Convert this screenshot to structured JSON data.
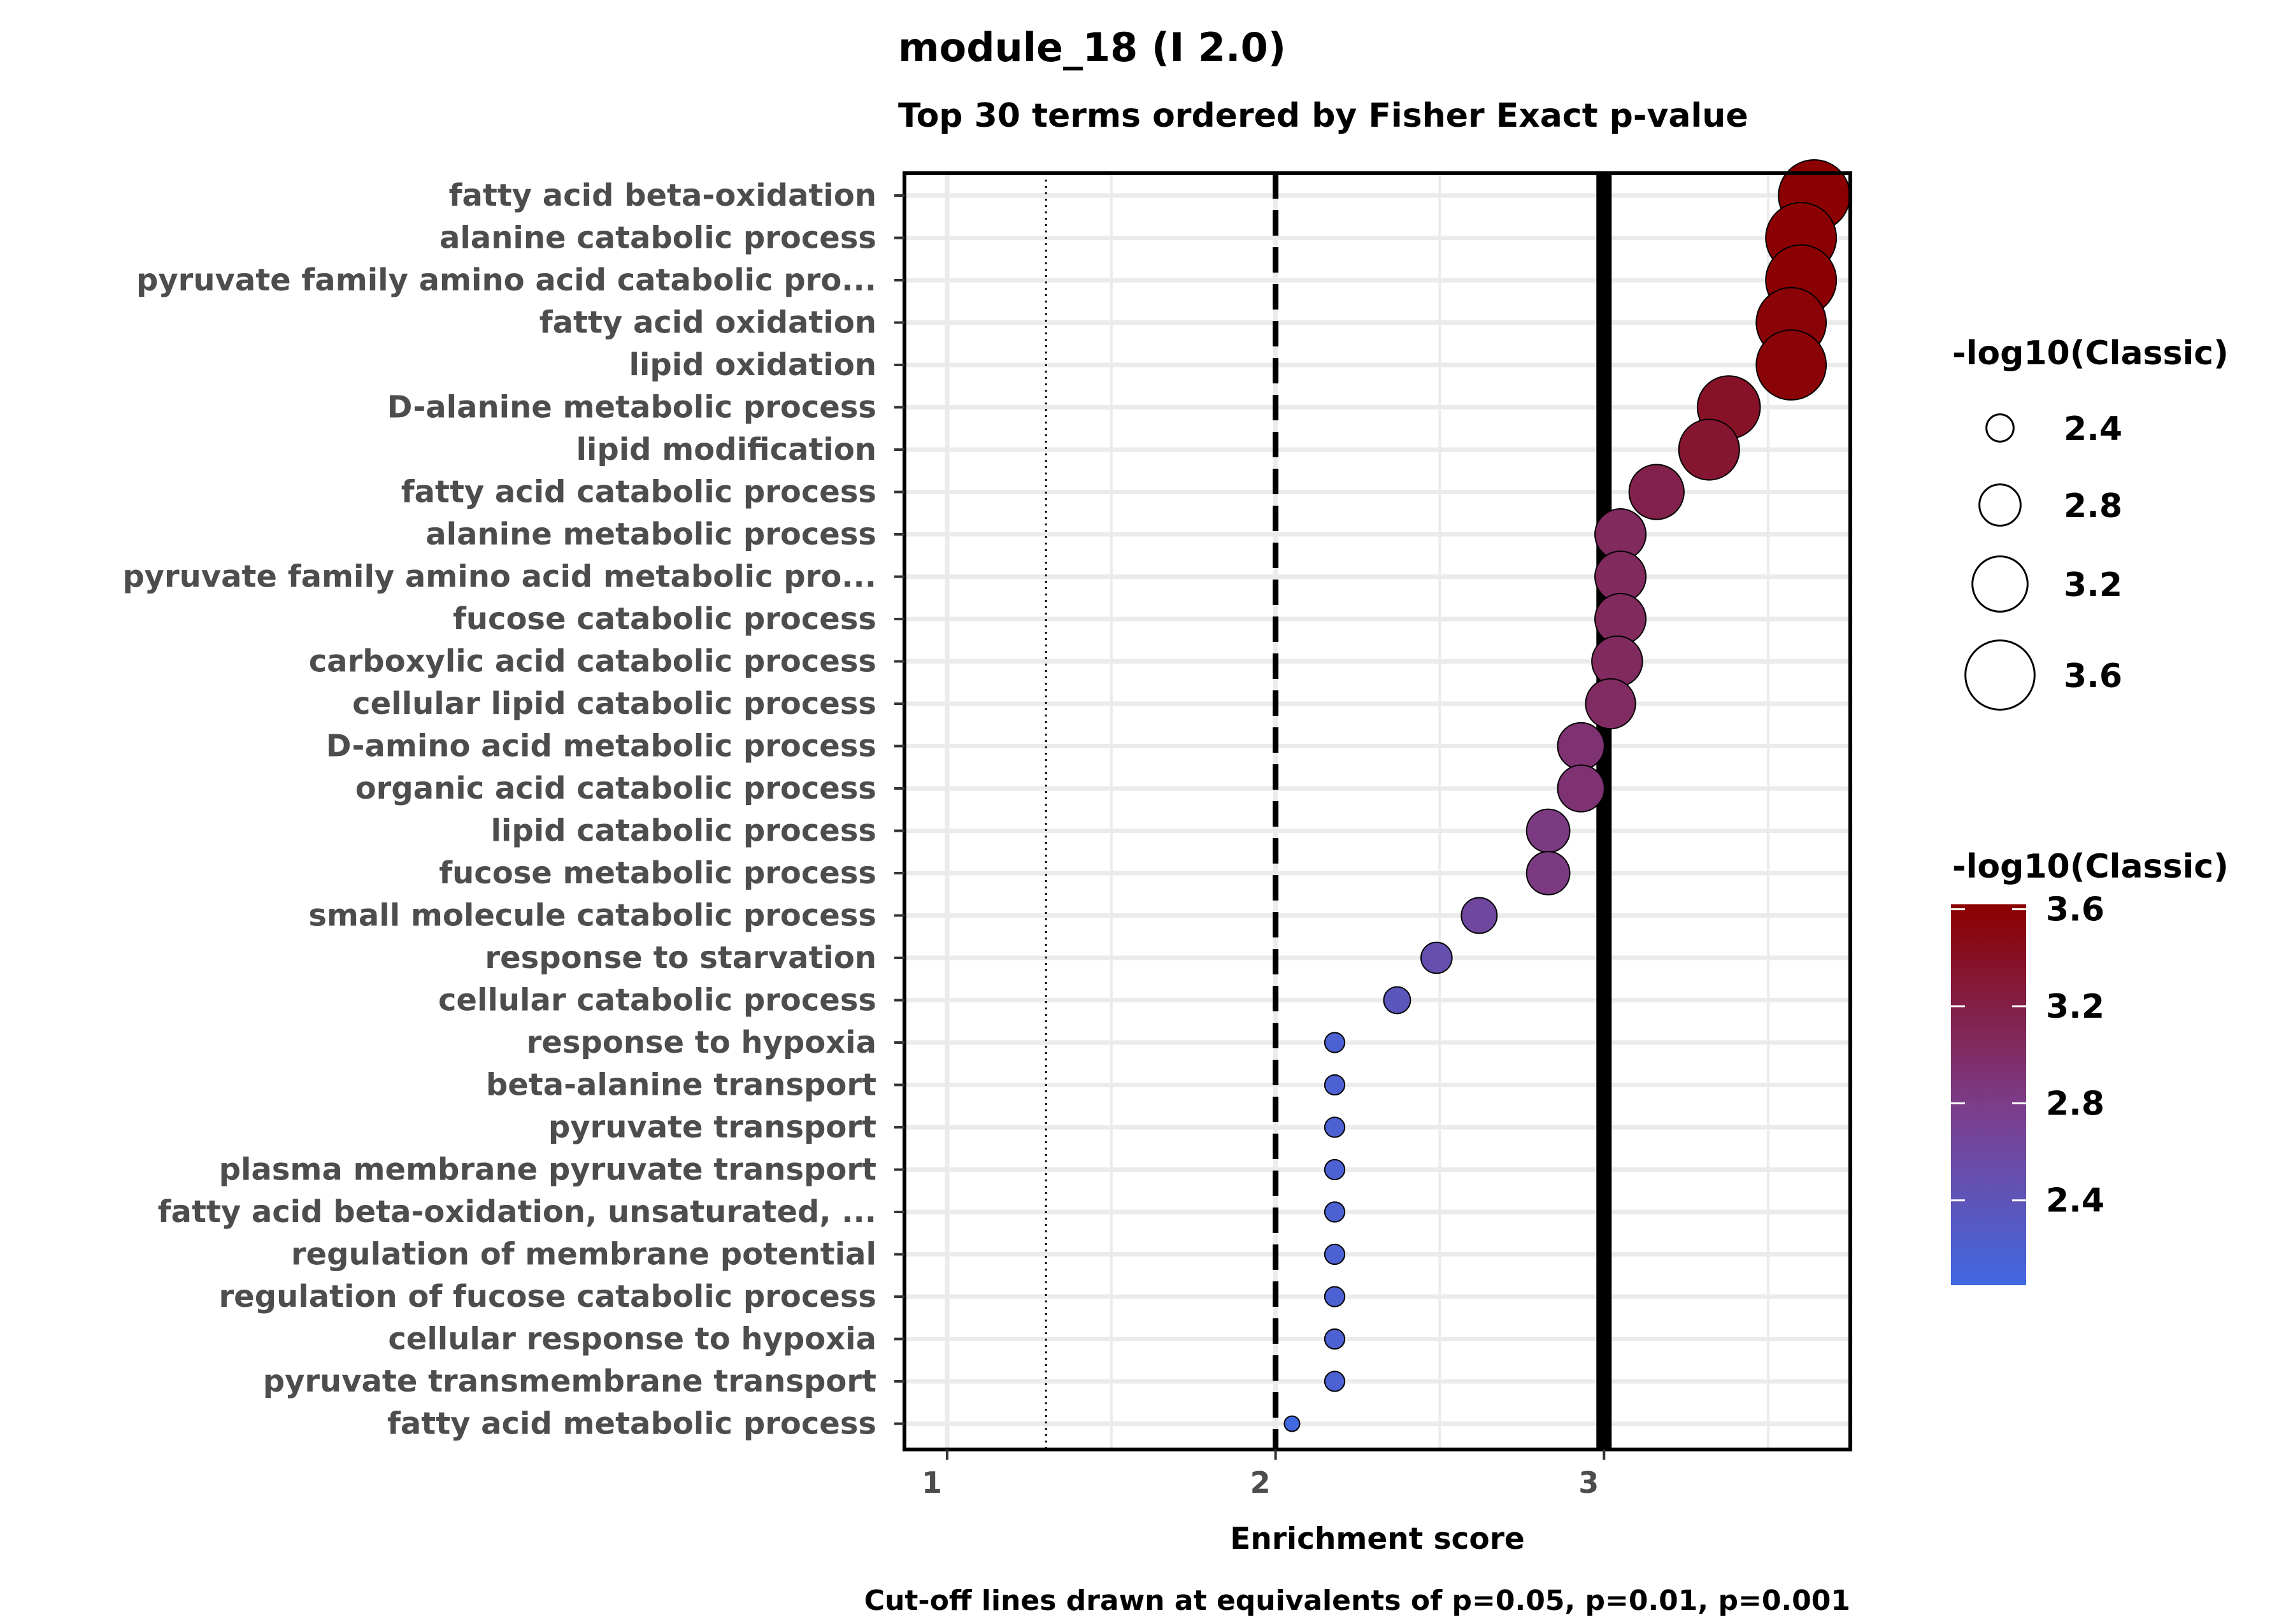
{
  "chart_data": {
    "type": "scatter",
    "title": "module_18 (I 2.0)",
    "subtitle": "Top 30 terms ordered by Fisher Exact p-value",
    "xlabel": "Enrichment score",
    "ylabel": "",
    "caption": "Cut-off lines drawn at equivalents of p=0.05, p=0.01, p=0.001",
    "xlim": [
      0.87,
      3.75
    ],
    "x_ticks": [
      "1",
      "2",
      "3"
    ],
    "x_tick_values": [
      1,
      2,
      3
    ],
    "cutoff_lines": [
      {
        "x": 1.301,
        "p": "p=0.05",
        "style": "dotted"
      },
      {
        "x": 2.0,
        "p": "p=0.01",
        "style": "dashed"
      },
      {
        "x": 3.0,
        "p": "p=0.001",
        "style": "solid"
      }
    ],
    "grid": true,
    "terms": [
      {
        "term": "fatty acid beta-oxidation",
        "x": 3.64,
        "log10": 3.62
      },
      {
        "term": "alanine catabolic process",
        "x": 3.6,
        "log10": 3.6
      },
      {
        "term": "pyruvate family amino acid catabolic pro...",
        "x": 3.6,
        "log10": 3.6
      },
      {
        "term": "fatty acid oxidation",
        "x": 3.57,
        "log10": 3.58
      },
      {
        "term": "lipid oxidation",
        "x": 3.57,
        "log10": 3.58
      },
      {
        "term": "D-alanine metabolic process",
        "x": 3.38,
        "log10": 3.38
      },
      {
        "term": "lipid modification",
        "x": 3.32,
        "log10": 3.32
      },
      {
        "term": "fatty acid catabolic process",
        "x": 3.16,
        "log10": 3.16
      },
      {
        "term": "alanine metabolic process",
        "x": 3.05,
        "log10": 3.05
      },
      {
        "term": "pyruvate family amino acid metabolic pro...",
        "x": 3.05,
        "log10": 3.05
      },
      {
        "term": "fucose catabolic process",
        "x": 3.05,
        "log10": 3.05
      },
      {
        "term": "carboxylic acid catabolic process",
        "x": 3.04,
        "log10": 3.04
      },
      {
        "term": "cellular lipid catabolic process",
        "x": 3.02,
        "log10": 3.02
      },
      {
        "term": "D-amino acid metabolic process",
        "x": 2.93,
        "log10": 2.93
      },
      {
        "term": "organic acid catabolic process",
        "x": 2.93,
        "log10": 2.93
      },
      {
        "term": "lipid catabolic process",
        "x": 2.83,
        "log10": 2.83
      },
      {
        "term": "fucose metabolic process",
        "x": 2.83,
        "log10": 2.83
      },
      {
        "term": "small molecule catabolic process",
        "x": 2.62,
        "log10": 2.62
      },
      {
        "term": "response to starvation",
        "x": 2.49,
        "log10": 2.49
      },
      {
        "term": "cellular catabolic process",
        "x": 2.37,
        "log10": 2.37
      },
      {
        "term": "response to hypoxia",
        "x": 2.18,
        "log10": 2.18
      },
      {
        "term": "beta-alanine transport",
        "x": 2.18,
        "log10": 2.18
      },
      {
        "term": "pyruvate transport",
        "x": 2.18,
        "log10": 2.18
      },
      {
        "term": "plasma membrane pyruvate transport",
        "x": 2.18,
        "log10": 2.18
      },
      {
        "term": "fatty acid beta-oxidation, unsaturated, ...",
        "x": 2.18,
        "log10": 2.18
      },
      {
        "term": "regulation of membrane potential",
        "x": 2.18,
        "log10": 2.18
      },
      {
        "term": "regulation of fucose catabolic process",
        "x": 2.18,
        "log10": 2.18
      },
      {
        "term": "cellular response to hypoxia",
        "x": 2.18,
        "log10": 2.18
      },
      {
        "term": "pyruvate transmembrane transport",
        "x": 2.18,
        "log10": 2.18
      },
      {
        "term": "fatty acid metabolic process",
        "x": 2.05,
        "log10": 2.05
      }
    ],
    "size_legend": {
      "title": "-log10(Classic)",
      "breaks": [
        2.4,
        2.8,
        3.2,
        3.6
      ],
      "labels": [
        "2.4",
        "2.8",
        "3.2",
        "3.6"
      ]
    },
    "color_legend": {
      "title": "-log10(Classic)",
      "low_color": "#4169E1",
      "mid_color": "#7B3F8F",
      "high_color": "#8B0000",
      "range": [
        2.05,
        3.62
      ],
      "breaks": [
        2.4,
        2.8,
        3.2,
        3.6
      ],
      "labels": [
        "2.4",
        "2.8",
        "3.2",
        "3.6"
      ]
    },
    "colors": {
      "grid": "#ebebeb",
      "axis_text": "#4d4d4d",
      "point_stroke": "#000000"
    }
  }
}
